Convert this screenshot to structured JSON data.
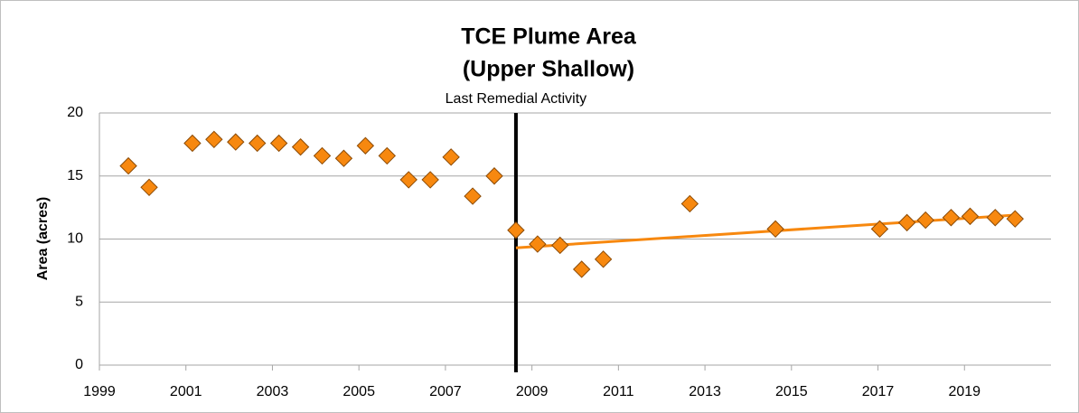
{
  "chart_data": {
    "type": "scatter",
    "title": "TCE Plume Area",
    "subtitle": "(Upper Shallow)",
    "y_label": "Area (acres)",
    "xlim": [
      1999,
      2021
    ],
    "xticks": [
      1999,
      2001,
      2003,
      2005,
      2007,
      2009,
      2011,
      2013,
      2015,
      2017,
      2019
    ],
    "ylim": [
      0,
      20
    ],
    "yticks": [
      0,
      5,
      10,
      15,
      20
    ],
    "grid": true,
    "color": "#f7880f",
    "x": [
      1999.67,
      2000.15,
      2001.15,
      2001.65,
      2002.15,
      2002.65,
      2003.15,
      2003.65,
      2004.15,
      2004.65,
      2005.15,
      2005.65,
      2006.15,
      2006.65,
      2007.13,
      2007.63,
      2008.13,
      2008.63,
      2009.13,
      2009.65,
      2010.15,
      2010.65,
      2012.65,
      2014.63,
      2017.04,
      2017.67,
      2018.1,
      2018.69,
      2019.13,
      2019.71,
      2020.17
    ],
    "values": [
      15.8,
      14.1,
      17.6,
      17.9,
      17.7,
      17.6,
      17.6,
      17.3,
      16.6,
      16.4,
      17.4,
      16.6,
      14.7,
      14.7,
      16.5,
      13.4,
      15.0,
      10.7,
      9.6,
      9.5,
      7.6,
      8.4,
      12.8,
      10.8,
      10.8,
      11.3,
      11.5,
      11.7,
      11.8,
      11.7,
      11.6
    ],
    "trendline": {
      "color": "#f7880f",
      "x": [
        2008.63,
        2020.17
      ],
      "values": [
        9.3,
        11.9
      ]
    },
    "annotations": [
      {
        "text": "Last Remedial Activity",
        "x": 2008.63
      }
    ]
  }
}
